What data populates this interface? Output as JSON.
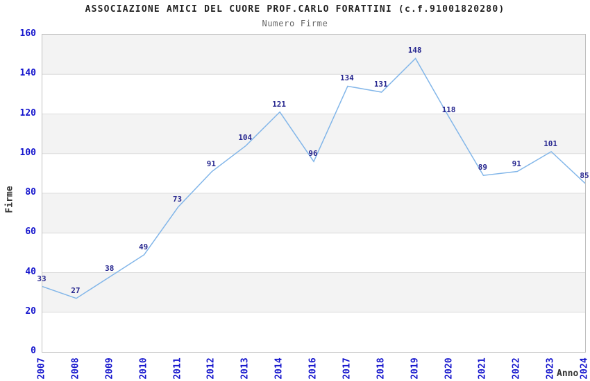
{
  "chart_data": {
    "type": "line",
    "title": "ASSOCIAZIONE AMICI DEL CUORE PROF.CARLO FORATTINI (c.f.91001820280)",
    "subtitle": "Numero Firme",
    "xlabel": "Anno",
    "ylabel": "Firme",
    "categories": [
      "2007",
      "2008",
      "2009",
      "2010",
      "2011",
      "2012",
      "2013",
      "2014",
      "2016",
      "2017",
      "2018",
      "2019",
      "2020",
      "2021",
      "2022",
      "2023",
      "2024"
    ],
    "values": [
      33,
      27,
      38,
      49,
      73,
      91,
      104,
      121,
      96,
      134,
      131,
      148,
      118,
      89,
      91,
      101,
      85
    ],
    "ylim": [
      0,
      160
    ],
    "ytick_interval": 20,
    "yticks": [
      0,
      20,
      40,
      60,
      80,
      100,
      120,
      140,
      160
    ],
    "grid": "horizontal-bands",
    "legend": "none",
    "data_labels_shown": true
  },
  "colors": {
    "series_line": "#82b6e9",
    "data_label": "#26268f",
    "tick_label": "#1515cd",
    "band_fill": "#f3f3f3",
    "grid_line": "#dcdcdc",
    "plot_border": "#bfbfbf",
    "title_text": "#222222",
    "subtitle_text": "#666666",
    "axis_title_text": "#333333",
    "background": "#ffffff"
  }
}
